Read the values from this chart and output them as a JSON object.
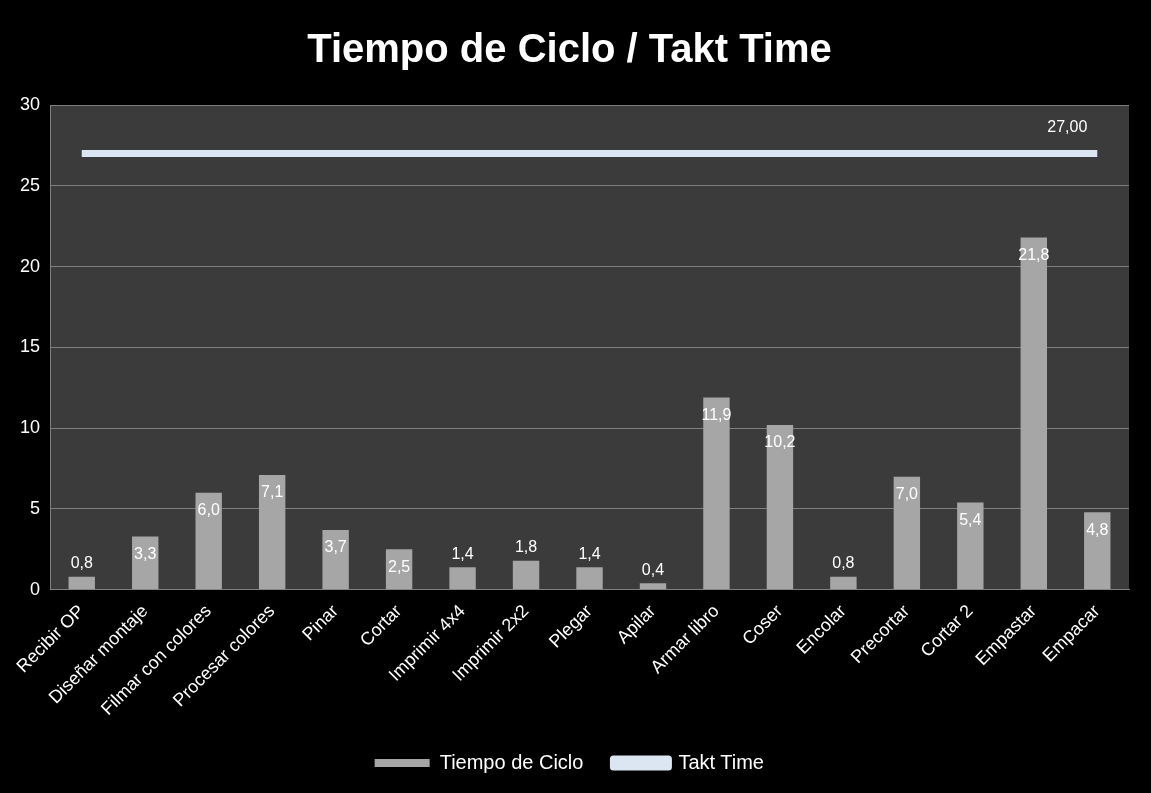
{
  "chart_data": {
    "type": "bar",
    "title": "Tiempo de Ciclo / Takt Time",
    "categories": [
      "Recibir OP",
      "Diseñar montaje",
      "Filmar con colores",
      "Procesar colores",
      "Pinar",
      "Cortar",
      "Imprimir 4x4",
      "Imprimir 2x2",
      "Plegar",
      "Apilar",
      "Armar libro",
      "Coser",
      "Encolar",
      "Precortar",
      "Cortar 2",
      "Empastar",
      "Empacar"
    ],
    "series": [
      {
        "name": "Tiempo de Ciclo",
        "color": "#a6a6a6",
        "values": [
          0.8,
          3.3,
          6.0,
          7.1,
          3.7,
          2.5,
          1.4,
          1.8,
          1.4,
          0.4,
          11.9,
          10.2,
          0.8,
          7.0,
          5.4,
          21.8,
          4.8
        ],
        "value_labels": [
          "0,8",
          "3,3",
          "6,0",
          "7,1",
          "3,7",
          "2,5",
          "1,4",
          "1,8",
          "1,4",
          "0,4",
          "11,9",
          "10,2",
          "0,8",
          "7,0",
          "5,4",
          "21,8",
          "4,8"
        ]
      },
      {
        "name": "Takt Time",
        "type": "line",
        "color": "#dce6f2",
        "values": [
          27,
          27,
          27,
          27,
          27,
          27,
          27,
          27,
          27,
          27,
          27,
          27,
          27,
          27,
          27,
          27,
          27
        ],
        "value_labels": [
          null,
          null,
          null,
          null,
          null,
          null,
          null,
          null,
          null,
          null,
          null,
          null,
          null,
          null,
          null,
          null,
          "27,00"
        ]
      }
    ],
    "ylim": [
      0,
      30
    ],
    "yticks": [
      0,
      5,
      10,
      15,
      20,
      25,
      30
    ],
    "grid": "y",
    "legend": "bottom",
    "marker": "none"
  }
}
